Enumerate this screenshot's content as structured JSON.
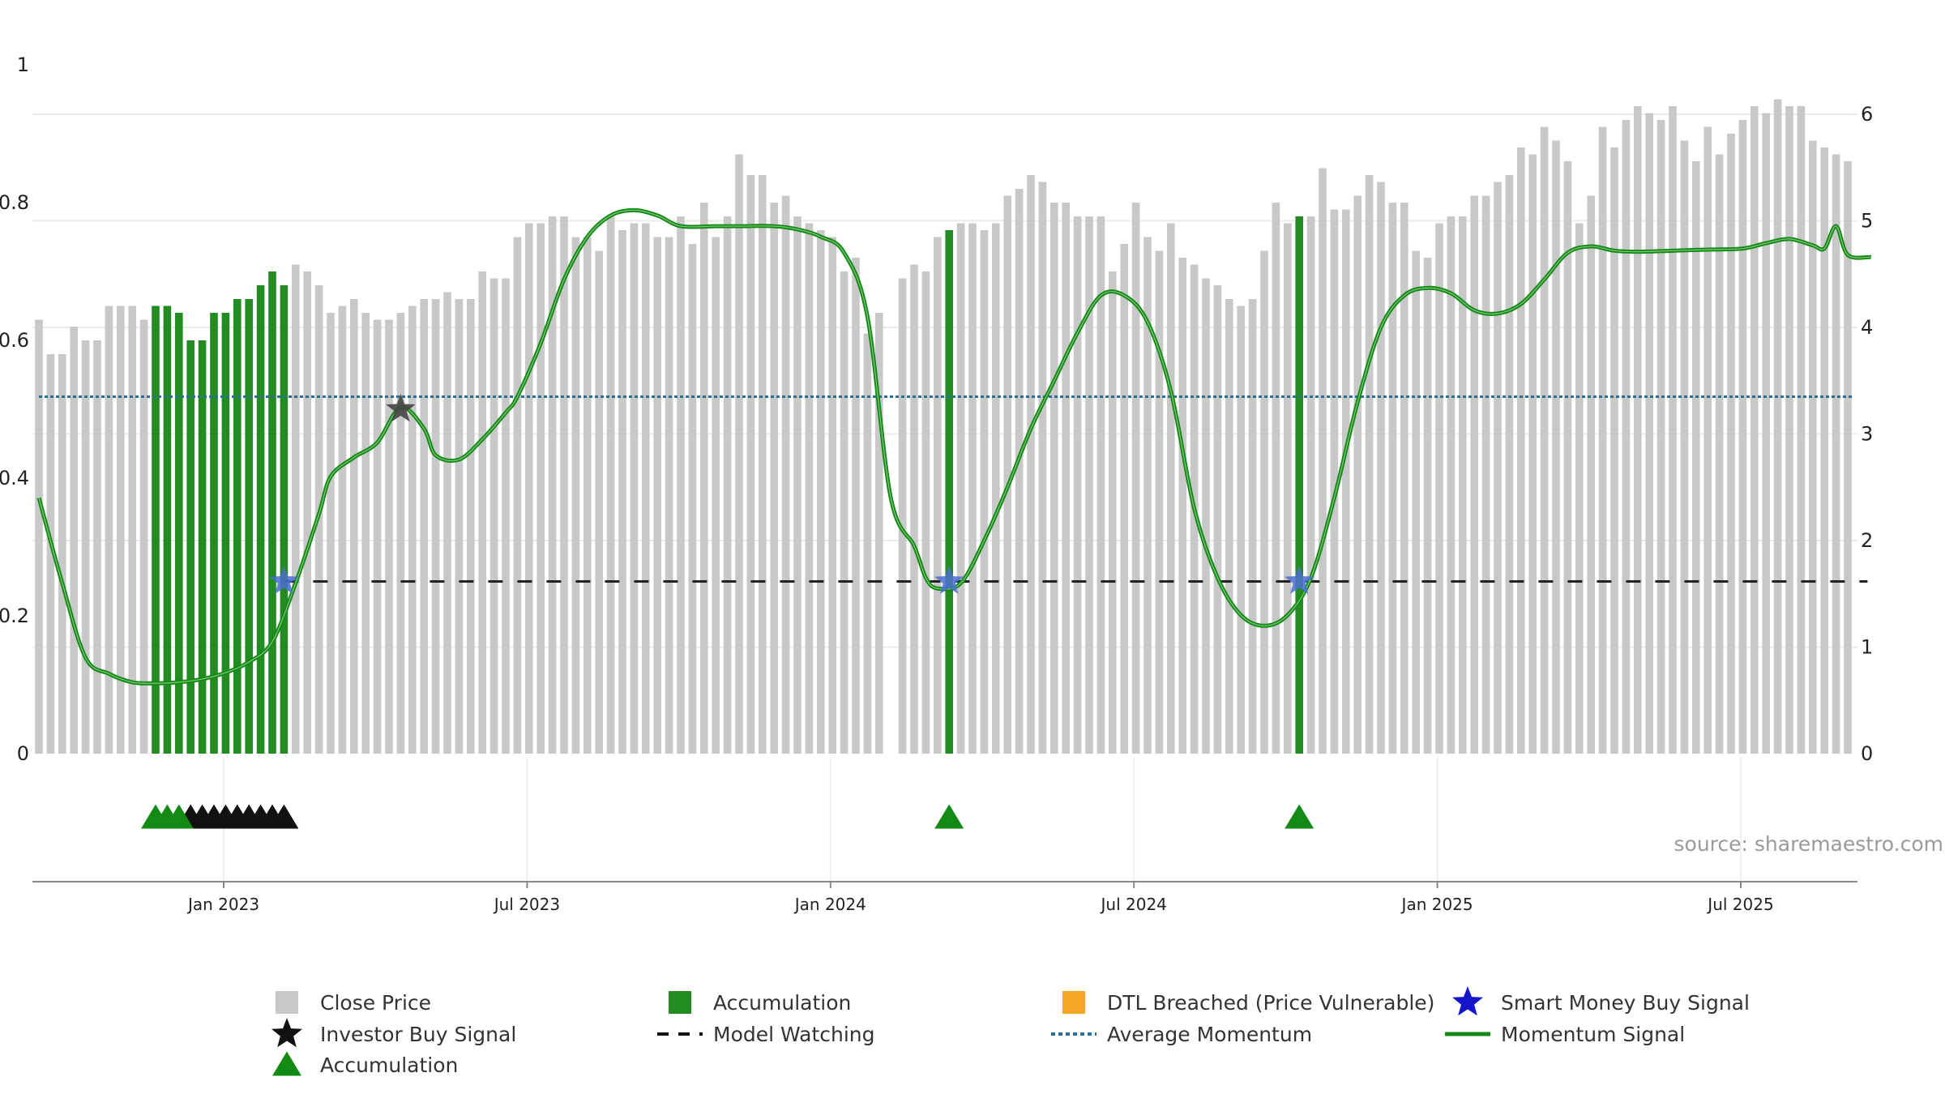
{
  "chart_data": {
    "type": "bar",
    "title": "",
    "xlabel": "",
    "ylabel": "",
    "source": "source: sharemaestro.com",
    "left_axis": {
      "ylim": [
        0,
        1
      ],
      "ticks": [
        "0",
        "0.2",
        "0.4",
        "0.6",
        "0.8",
        "1"
      ]
    },
    "right_axis": {
      "ylim": [
        0,
        6.5
      ],
      "ticks": [
        "0",
        "1",
        "2",
        "3",
        "4",
        "5",
        "6"
      ]
    },
    "date_ticks": [
      "Jan 2023",
      "Jul 2023",
      "Jan 2024",
      "Jul 2024",
      "Jan 2025",
      "Jul 2025"
    ],
    "date_tick_weeks": [
      15,
      41,
      67,
      93,
      119,
      145
    ],
    "close_price": [
      0.63,
      0.58,
      0.58,
      0.62,
      0.6,
      0.6,
      0.65,
      0.65,
      0.65,
      0.63,
      0.65,
      0.65,
      0.64,
      0.6,
      0.6,
      0.64,
      0.64,
      0.66,
      0.66,
      0.68,
      0.7,
      0.68,
      0.71,
      0.7,
      0.68,
      0.64,
      0.65,
      0.66,
      0.64,
      0.63,
      0.63,
      0.64,
      0.65,
      0.66,
      0.66,
      0.67,
      0.66,
      0.66,
      0.7,
      0.69,
      0.69,
      0.75,
      0.77,
      0.77,
      0.78,
      0.78,
      0.75,
      0.75,
      0.73,
      0.78,
      0.76,
      0.77,
      0.77,
      0.75,
      0.75,
      0.78,
      0.74,
      0.8,
      0.75,
      0.78,
      0.87,
      0.84,
      0.84,
      0.8,
      0.81,
      0.78,
      0.77,
      0.76,
      0.75,
      0.7,
      0.72,
      0.61,
      0.64,
      0,
      0.69,
      0.71,
      0.7,
      0.75,
      0.76,
      0.77,
      0.77,
      0.76,
      0.77,
      0.81,
      0.82,
      0.84,
      0.83,
      0.8,
      0.8,
      0.78,
      0.78,
      0.78,
      0.7,
      0.74,
      0.8,
      0.75,
      0.73,
      0.77,
      0.72,
      0.71,
      0.69,
      0.68,
      0.66,
      0.65,
      0.66,
      0.73,
      0.8,
      0.77,
      0.78,
      0.78,
      0.85,
      0.79,
      0.79,
      0.81,
      0.84,
      0.83,
      0.8,
      0.8,
      0.73,
      0.72,
      0.77,
      0.78,
      0.78,
      0.81,
      0.81,
      0.83,
      0.84,
      0.88,
      0.87,
      0.91,
      0.89,
      0.86,
      0.77,
      0.81,
      0.91,
      0.88,
      0.92,
      0.94,
      0.93,
      0.92,
      0.94,
      0.89,
      0.86,
      0.91,
      0.87,
      0.9,
      0.92,
      0.94,
      0.93,
      0.95,
      0.94,
      0.94,
      0.89,
      0.88,
      0.87,
      0.86
    ],
    "accumulation_bar_weeks": [
      10,
      11,
      12,
      13,
      14,
      15,
      16,
      17,
      18,
      19,
      20,
      21,
      78,
      108
    ],
    "accumulation_marker_weeks": [
      10,
      11,
      12,
      78,
      108
    ],
    "investor_buy_marker_weeks": [
      13,
      14,
      15,
      16,
      17,
      18,
      19,
      20,
      21
    ],
    "investor_buy_signal": {
      "week": 31,
      "value": 0.5
    },
    "smart_money_buy_signals": [
      {
        "week": 21,
        "value": 0.25
      },
      {
        "week": 78,
        "value": 0.25
      },
      {
        "week": 108,
        "value": 0.25
      }
    ],
    "model_watching": {
      "start_week": 21,
      "end_week": 156,
      "value": 0.25
    },
    "average_momentum": 3.35,
    "momentum_signal": [
      [
        0,
        2.4
      ],
      [
        2,
        1.6
      ],
      [
        4,
        0.9
      ],
      [
        6,
        0.75
      ],
      [
        8,
        0.67
      ],
      [
        10,
        0.66
      ],
      [
        12,
        0.67
      ],
      [
        14,
        0.7
      ],
      [
        16,
        0.76
      ],
      [
        18,
        0.86
      ],
      [
        20,
        1.05
      ],
      [
        22,
        1.6
      ],
      [
        24,
        2.25
      ],
      [
        25,
        2.6
      ],
      [
        27,
        2.78
      ],
      [
        29,
        2.92
      ],
      [
        31,
        3.25
      ],
      [
        33,
        3.05
      ],
      [
        34,
        2.8
      ],
      [
        36,
        2.76
      ],
      [
        38,
        2.95
      ],
      [
        40,
        3.2
      ],
      [
        41,
        3.35
      ],
      [
        43,
        3.85
      ],
      [
        45,
        4.45
      ],
      [
        47,
        4.85
      ],
      [
        49,
        5.05
      ],
      [
        51,
        5.1
      ],
      [
        53,
        5.05
      ],
      [
        55,
        4.95
      ],
      [
        58,
        4.95
      ],
      [
        60,
        4.95
      ],
      [
        63,
        4.95
      ],
      [
        65,
        4.92
      ],
      [
        67,
        4.85
      ],
      [
        69,
        4.7
      ],
      [
        71,
        4.1
      ],
      [
        73,
        2.4
      ],
      [
        75,
        1.95
      ],
      [
        76,
        1.65
      ],
      [
        77,
        1.55
      ],
      [
        79,
        1.6
      ],
      [
        81,
        2.0
      ],
      [
        83,
        2.5
      ],
      [
        85,
        3.05
      ],
      [
        87,
        3.5
      ],
      [
        89,
        3.95
      ],
      [
        91,
        4.3
      ],
      [
        93,
        4.3
      ],
      [
        95,
        4.05
      ],
      [
        97,
        3.4
      ],
      [
        99,
        2.3
      ],
      [
        101,
        1.65
      ],
      [
        103,
        1.3
      ],
      [
        105,
        1.2
      ],
      [
        107,
        1.3
      ],
      [
        109,
        1.65
      ],
      [
        111,
        2.4
      ],
      [
        113,
        3.3
      ],
      [
        115,
        4.0
      ],
      [
        117,
        4.3
      ],
      [
        119,
        4.37
      ],
      [
        121,
        4.32
      ],
      [
        123,
        4.16
      ],
      [
        125,
        4.13
      ],
      [
        127,
        4.22
      ],
      [
        129,
        4.45
      ],
      [
        131,
        4.7
      ],
      [
        133,
        4.76
      ],
      [
        135,
        4.72
      ],
      [
        137,
        4.71
      ],
      [
        140,
        4.72
      ],
      [
        143,
        4.73
      ],
      [
        146,
        4.74
      ],
      [
        148,
        4.79
      ],
      [
        150,
        4.83
      ],
      [
        152,
        4.77
      ],
      [
        153,
        4.74
      ],
      [
        154,
        4.95
      ],
      [
        155,
        4.68
      ],
      [
        157,
        4.66
      ]
    ],
    "legend": [
      {
        "label": "Close Price",
        "symbol": "gray-square"
      },
      {
        "label": "Accumulation",
        "symbol": "green-square"
      },
      {
        "label": "DTL Breached (Price Vulnerable)",
        "symbol": "orange-square"
      },
      {
        "label": "Smart Money Buy Signal",
        "symbol": "blue-star"
      },
      {
        "label": "Investor Buy Signal",
        "symbol": "black-star"
      },
      {
        "label": "Model Watching",
        "symbol": "black-dashed-line"
      },
      {
        "label": "Average Momentum",
        "symbol": "blue-dotted-line"
      },
      {
        "label": "Momentum Signal",
        "symbol": "green-line"
      },
      {
        "label": "Accumulation",
        "symbol": "green-triangle"
      }
    ],
    "colors": {
      "close_price": "#c8c8c8",
      "accumulation": "#228b22",
      "dtl_breached": "#f5a623",
      "smart_money": "#1515cc",
      "investor": "#111111",
      "average_momentum": "#2b6f96",
      "momentum": "#138a13",
      "marker_green": "#138a13",
      "grid": "#ebebeb"
    }
  }
}
